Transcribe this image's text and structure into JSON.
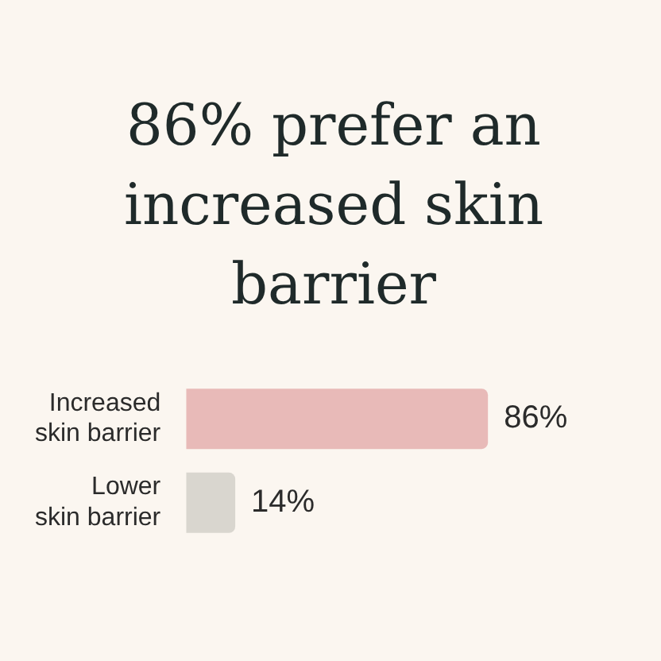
{
  "chart_data": {
    "type": "bar",
    "orientation": "horizontal",
    "title": "86% prefer an increased skin barrier",
    "categories": [
      "Increased skin barrier",
      "Lower skin barrier"
    ],
    "values": [
      86,
      14
    ],
    "colors": [
      "#e8bab8",
      "#d9d6cf"
    ],
    "value_labels": [
      "86%",
      "14%"
    ]
  }
}
